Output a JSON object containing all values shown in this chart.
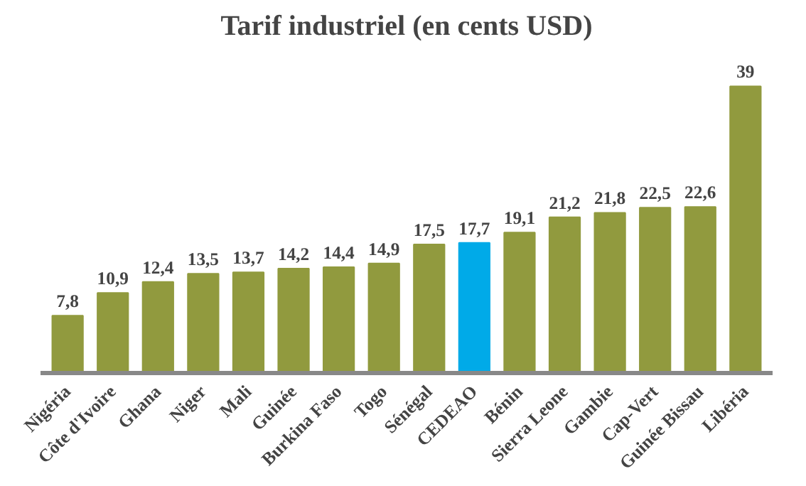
{
  "chart_data": {
    "type": "bar",
    "title": "Tarif industriel (en cents USD)",
    "categories": [
      "Nigéria",
      "Côte d'Ivoire",
      "Ghana",
      "Niger",
      "Mali",
      "Guinée",
      "Burkina Faso",
      "Togo",
      "Sénégal",
      "CEDEAO",
      "Bénin",
      "Sierra Leone",
      "Gambie",
      "Cap-Vert",
      "Guinée Bissau",
      "Libéria"
    ],
    "values": [
      7.8,
      10.9,
      12.4,
      13.5,
      13.7,
      14.2,
      14.4,
      14.9,
      17.5,
      17.7,
      19.1,
      21.2,
      21.8,
      22.5,
      22.6,
      39
    ],
    "value_labels": [
      "7,8",
      "10,9",
      "12,4",
      "13,5",
      "13,7",
      "14,2",
      "14,4",
      "14,9",
      "17,5",
      "17,7",
      "19,1",
      "21,2",
      "21,8",
      "22,5",
      "22,6",
      "39"
    ],
    "colors": [
      "#919a3e",
      "#919a3e",
      "#919a3e",
      "#919a3e",
      "#919a3e",
      "#919a3e",
      "#919a3e",
      "#919a3e",
      "#919a3e",
      "#00aae8",
      "#919a3e",
      "#919a3e",
      "#919a3e",
      "#919a3e",
      "#919a3e",
      "#919a3e"
    ],
    "grid": false
  }
}
